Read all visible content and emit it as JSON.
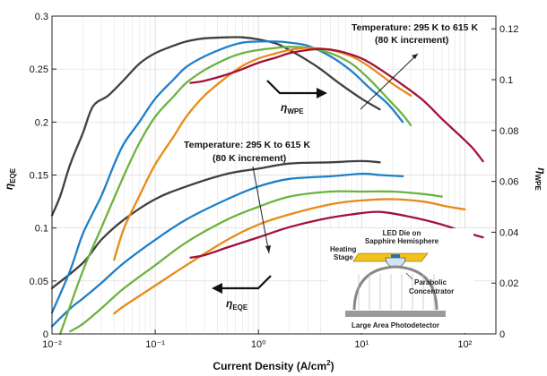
{
  "chart_data": {
    "type": "line",
    "xlabel": "Current Density (A/cm²)",
    "ylabel_left": "ηEQE",
    "ylabel_right": "ηWPE",
    "xscale": "log",
    "xlim": [
      0.01,
      200
    ],
    "ylim_left": [
      0,
      0.3
    ],
    "ylim_right": [
      0,
      0.125
    ],
    "x_ticks": [
      "10⁻²",
      "10⁻¹",
      "10⁰",
      "10¹",
      "10²"
    ],
    "y_ticks_left": [
      "0",
      "0.05",
      "0.1",
      "0.15",
      "0.2",
      "0.25",
      "0.3"
    ],
    "y_ticks_right": [
      "0",
      "0.02",
      "0.04",
      "0.06",
      "0.08",
      "0.1",
      "0.12"
    ],
    "grid": true,
    "colors": [
      "#404040",
      "#1f7fc8",
      "#6cb33f",
      "#e88a1a",
      "#a3123a"
    ],
    "series_eqe": [
      {
        "points": [
          [
            0.01,
            0.112
          ],
          [
            0.012,
            0.13
          ],
          [
            0.015,
            0.16
          ],
          [
            0.02,
            0.19
          ],
          [
            0.025,
            0.215
          ],
          [
            0.035,
            0.225
          ],
          [
            0.05,
            0.24
          ],
          [
            0.07,
            0.255
          ],
          [
            0.1,
            0.265
          ],
          [
            0.15,
            0.272
          ],
          [
            0.2,
            0.276
          ],
          [
            0.3,
            0.279
          ],
          [
            0.5,
            0.28
          ],
          [
            0.7,
            0.28
          ],
          [
            1,
            0.278
          ],
          [
            1.5,
            0.274
          ],
          [
            2,
            0.268
          ],
          [
            3,
            0.258
          ],
          [
            4,
            0.25
          ],
          [
            6,
            0.237
          ],
          [
            10,
            0.222
          ],
          [
            15,
            0.212
          ]
        ]
      },
      {
        "points": [
          [
            0.01,
            0.02
          ],
          [
            0.015,
            0.06
          ],
          [
            0.02,
            0.095
          ],
          [
            0.03,
            0.13
          ],
          [
            0.04,
            0.16
          ],
          [
            0.05,
            0.18
          ],
          [
            0.07,
            0.2
          ],
          [
            0.1,
            0.222
          ],
          [
            0.15,
            0.24
          ],
          [
            0.2,
            0.252
          ],
          [
            0.3,
            0.262
          ],
          [
            0.5,
            0.271
          ],
          [
            0.7,
            0.275
          ],
          [
            1,
            0.276
          ],
          [
            1.5,
            0.276
          ],
          [
            2,
            0.275
          ],
          [
            3,
            0.272
          ],
          [
            5,
            0.262
          ],
          [
            8,
            0.248
          ],
          [
            12,
            0.232
          ],
          [
            18,
            0.217
          ],
          [
            25,
            0.2
          ]
        ]
      },
      {
        "points": [
          [
            0.012,
            0
          ],
          [
            0.02,
            0.06
          ],
          [
            0.03,
            0.1
          ],
          [
            0.05,
            0.15
          ],
          [
            0.07,
            0.18
          ],
          [
            0.1,
            0.205
          ],
          [
            0.15,
            0.224
          ],
          [
            0.2,
            0.237
          ],
          [
            0.3,
            0.249
          ],
          [
            0.5,
            0.26
          ],
          [
            0.7,
            0.265
          ],
          [
            1,
            0.268
          ],
          [
            1.5,
            0.27
          ],
          [
            2,
            0.271
          ],
          [
            3,
            0.27
          ],
          [
            5,
            0.265
          ],
          [
            8,
            0.255
          ],
          [
            12,
            0.24
          ],
          [
            18,
            0.222
          ],
          [
            25,
            0.207
          ],
          [
            30,
            0.197
          ]
        ]
      },
      {
        "points": [
          [
            0.04,
            0.07
          ],
          [
            0.05,
            0.1
          ],
          [
            0.07,
            0.13
          ],
          [
            0.1,
            0.16
          ],
          [
            0.15,
            0.186
          ],
          [
            0.2,
            0.205
          ],
          [
            0.3,
            0.225
          ],
          [
            0.5,
            0.243
          ],
          [
            0.7,
            0.253
          ],
          [
            1,
            0.26
          ],
          [
            1.5,
            0.265
          ],
          [
            2,
            0.268
          ],
          [
            3,
            0.27
          ],
          [
            5,
            0.268
          ],
          [
            8,
            0.262
          ],
          [
            12,
            0.252
          ],
          [
            20,
            0.236
          ],
          [
            30,
            0.225
          ]
        ]
      },
      {
        "points": [
          [
            0.22,
            0.237
          ],
          [
            0.3,
            0.239
          ],
          [
            0.5,
            0.245
          ],
          [
            0.7,
            0.25
          ],
          [
            1,
            0.256
          ],
          [
            1.5,
            0.261
          ],
          [
            2,
            0.265
          ],
          [
            3,
            0.268
          ],
          [
            4,
            0.269
          ],
          [
            6,
            0.267
          ],
          [
            10,
            0.26
          ],
          [
            15,
            0.25
          ],
          [
            25,
            0.235
          ],
          [
            40,
            0.22
          ],
          [
            60,
            0.203
          ],
          [
            90,
            0.187
          ],
          [
            120,
            0.175
          ],
          [
            150,
            0.163
          ]
        ]
      }
    ],
    "series_wpe": [
      {
        "points": [
          [
            0.01,
            0.018
          ],
          [
            0.02,
            0.028
          ],
          [
            0.03,
            0.037
          ],
          [
            0.05,
            0.045
          ],
          [
            0.1,
            0.053
          ],
          [
            0.2,
            0.058
          ],
          [
            0.5,
            0.063
          ],
          [
            1,
            0.065
          ],
          [
            2,
            0.067
          ],
          [
            5,
            0.0675
          ],
          [
            10,
            0.068
          ],
          [
            15,
            0.0675
          ]
        ]
      },
      {
        "points": [
          [
            0.01,
            0.003
          ],
          [
            0.015,
            0.01
          ],
          [
            0.02,
            0.014
          ],
          [
            0.03,
            0.02
          ],
          [
            0.05,
            0.028
          ],
          [
            0.1,
            0.037
          ],
          [
            0.2,
            0.045
          ],
          [
            0.5,
            0.053
          ],
          [
            1,
            0.058
          ],
          [
            2,
            0.061
          ],
          [
            5,
            0.062
          ],
          [
            10,
            0.063
          ],
          [
            15,
            0.0625
          ],
          [
            25,
            0.062
          ]
        ]
      },
      {
        "points": [
          [
            0.015,
            0.001
          ],
          [
            0.02,
            0.004
          ],
          [
            0.03,
            0.01
          ],
          [
            0.05,
            0.018
          ],
          [
            0.1,
            0.027
          ],
          [
            0.2,
            0.036
          ],
          [
            0.5,
            0.045
          ],
          [
            1,
            0.05
          ],
          [
            2,
            0.054
          ],
          [
            5,
            0.056
          ],
          [
            10,
            0.056
          ],
          [
            20,
            0.056
          ],
          [
            40,
            0.055
          ],
          [
            60,
            0.054
          ]
        ]
      },
      {
        "points": [
          [
            0.04,
            0.008
          ],
          [
            0.05,
            0.011
          ],
          [
            0.1,
            0.019
          ],
          [
            0.2,
            0.027
          ],
          [
            0.5,
            0.037
          ],
          [
            1,
            0.043
          ],
          [
            2,
            0.047
          ],
          [
            5,
            0.051
          ],
          [
            10,
            0.0525
          ],
          [
            20,
            0.053
          ],
          [
            40,
            0.052
          ],
          [
            70,
            0.05
          ],
          [
            100,
            0.049
          ]
        ]
      },
      {
        "points": [
          [
            0.22,
            0.03
          ],
          [
            0.3,
            0.031
          ],
          [
            0.5,
            0.034
          ],
          [
            1,
            0.038
          ],
          [
            2,
            0.042
          ],
          [
            4,
            0.045
          ],
          [
            8,
            0.047
          ],
          [
            15,
            0.048
          ],
          [
            30,
            0.046
          ],
          [
            60,
            0.043
          ],
          [
            100,
            0.04
          ],
          [
            150,
            0.038
          ]
        ]
      }
    ]
  },
  "annotations": {
    "wpe_temp_line1": "Temperature: 295 K to 615 K",
    "wpe_temp_line2": "(80 K increment)",
    "eqe_temp_line1": "Temperature: 295 K to 615 K",
    "eqe_temp_line2": "(80 K increment)",
    "wpe_eta": "η",
    "wpe_sub": "WPE",
    "eqe_eta": "η",
    "eqe_sub": "EQE"
  },
  "inset": {
    "led_line1": "LED Die on",
    "led_line2": "Sapphire Hemisphere",
    "heating_line1": "Heating",
    "heating_line2": "Stage",
    "parabolic_line1": "Parabolic",
    "parabolic_line2": "Concentrator",
    "detector": "Large Area Photodetector"
  },
  "axes": {
    "xlabel_main": "Current Density (A/cm",
    "xlabel_sup": "2",
    "xlabel_close": ")",
    "ylabel_left_eta": "η",
    "ylabel_left_sub": "EQE",
    "ylabel_right_eta": "η",
    "ylabel_right_sub": "WPE"
  }
}
